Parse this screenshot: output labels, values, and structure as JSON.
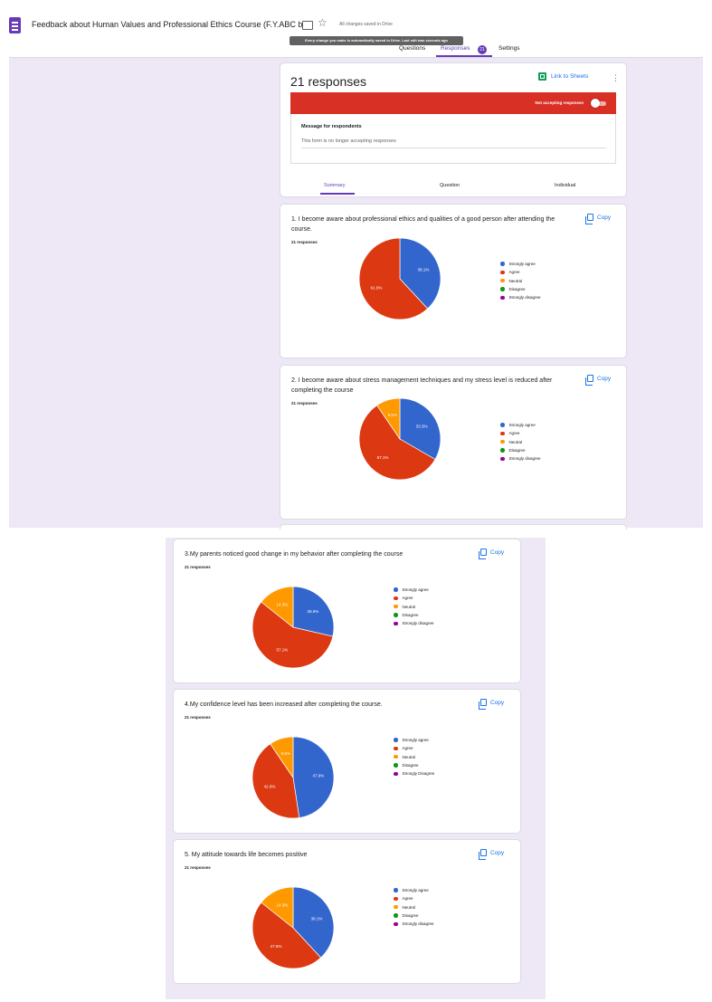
{
  "header": {
    "form_title": "Feedback about Human Values and Professional Ethics Course (F.Y.ABC b",
    "saved_status": "All changes saved in Drive",
    "tooltip": "Every change you make is automatically saved in Drive. Last edit was seconds ago",
    "tabs": [
      {
        "label": "Questions"
      },
      {
        "label": "Responses"
      },
      {
        "label": "Settings"
      }
    ],
    "responses_badge": "21"
  },
  "responses_card": {
    "count_label": "21 responses",
    "sheets_link": "Link to Sheets",
    "accepting_label": "Not accepting responses",
    "accepting": false,
    "message_label": "Message for respondents",
    "message_value": "This form is no longer accepting responses",
    "subtabs": [
      {
        "label": "Summary"
      },
      {
        "label": "Question"
      },
      {
        "label": "Individual"
      }
    ]
  },
  "copy_label": "Copy",
  "legend_colors": [
    "#3366cc",
    "#dc3912",
    "#ff9900",
    "#109618",
    "#990099"
  ],
  "questions": [
    {
      "title": "1. I become aware about professional ethics and qualities of a good person after attending the course.",
      "responses": "21 responses",
      "legend": [
        "Strongly agree",
        "Agree",
        "Neutral",
        "Disagree",
        "Strongly disagree"
      ]
    },
    {
      "title": "2. I become aware about stress management techniques and my stress level is reduced after completing the course",
      "responses": "21 responses",
      "legend": [
        "Strongly agree",
        "Agree",
        "Neutral",
        "Disagree",
        "Strongly disagree"
      ]
    },
    {
      "title": "3.My parents noticed good change in my behavior after completing the course",
      "responses": "21 responses",
      "legend": [
        "Strongly agree",
        "Agree",
        "Neutral",
        "Disagree",
        "Strongly disagree"
      ]
    },
    {
      "title": "4.My confidence level has been increased after completing the course.",
      "responses": "21 responses",
      "legend": [
        "Strongly agree",
        "Agree",
        "Neutral",
        "Disagree",
        "Strongly Disagree"
      ]
    },
    {
      "title": "5. My attitude towards life becomes positive",
      "responses": "21 responses",
      "legend": [
        "Strongly agree",
        "Agree",
        "Neutral",
        "Disagree",
        "Strongly disagree"
      ]
    }
  ],
  "chart_data": [
    {
      "type": "pie",
      "categories": [
        "Strongly agree",
        "Agree",
        "Neutral",
        "Disagree",
        "Strongly disagree"
      ],
      "values": [
        38.1,
        61.9,
        0,
        0,
        0
      ],
      "labels": [
        "38.1%",
        "61.9%",
        "",
        "",
        ""
      ]
    },
    {
      "type": "pie",
      "categories": [
        "Strongly agree",
        "Agree",
        "Neutral",
        "Disagree",
        "Strongly disagree"
      ],
      "values": [
        33.3,
        57.1,
        9.5,
        0,
        0
      ],
      "labels": [
        "33.3%",
        "57.1%",
        "9.5%",
        "",
        ""
      ]
    },
    {
      "type": "pie",
      "categories": [
        "Strongly agree",
        "Agree",
        "Neutral",
        "Disagree",
        "Strongly disagree"
      ],
      "values": [
        28.6,
        57.1,
        14.3,
        0,
        0
      ],
      "labels": [
        "28.6%",
        "57.1%",
        "14.3%",
        "",
        ""
      ]
    },
    {
      "type": "pie",
      "categories": [
        "Strongly agree",
        "Agree",
        "Neutral",
        "Disagree",
        "Strongly Disagree"
      ],
      "values": [
        47.6,
        42.9,
        9.5,
        0,
        0
      ],
      "labels": [
        "47.6%",
        "42.9%",
        "9.5%",
        "",
        ""
      ]
    },
    {
      "type": "pie",
      "categories": [
        "Strongly agree",
        "Agree",
        "Neutral",
        "Disagree",
        "Strongly disagree"
      ],
      "values": [
        38.1,
        47.6,
        14.3,
        0,
        0
      ],
      "labels": [
        "38.1%",
        "47.6%",
        "14.3%",
        "",
        ""
      ]
    }
  ]
}
